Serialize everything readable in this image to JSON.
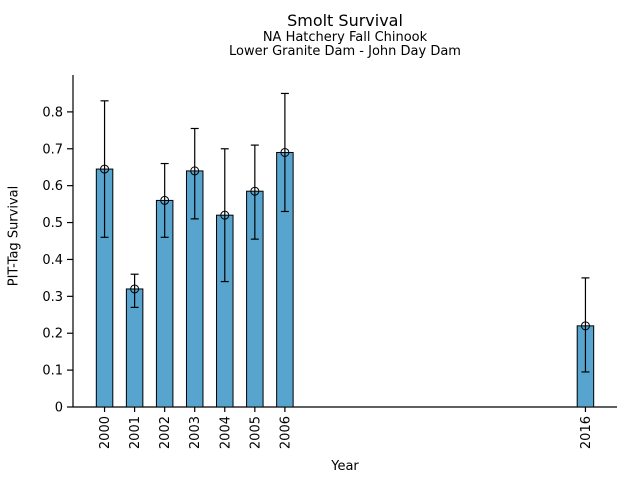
{
  "chart_data": {
    "type": "bar",
    "title": "Smolt Survival",
    "subtitles": [
      "NA Hatchery Fall Chinook",
      "Lower Granite Dam - John Day Dam"
    ],
    "xlabel": "Year",
    "ylabel": "PIT-Tag Survival",
    "categories": [
      "2000",
      "2001",
      "2002",
      "2003",
      "2004",
      "2005",
      "2006",
      "2016"
    ],
    "values": [
      0.645,
      0.32,
      0.56,
      0.64,
      0.52,
      0.585,
      0.69,
      0.22
    ],
    "error_low": [
      0.46,
      0.27,
      0.46,
      0.51,
      0.34,
      0.455,
      0.53,
      0.095
    ],
    "error_high": [
      0.83,
      0.36,
      0.66,
      0.755,
      0.7,
      0.71,
      0.85,
      0.35
    ],
    "yticks": [
      0,
      0.1,
      0.2,
      0.3,
      0.4,
      0.5,
      0.6,
      0.7,
      0.8
    ],
    "ytick_labels": [
      "0",
      "0.1",
      "0.2",
      "0.3",
      "0.4",
      "0.5",
      "0.6",
      "0.7",
      "0.8"
    ],
    "ylim": [
      0,
      0.9
    ],
    "xlim": [
      1998.95,
      2017.05
    ],
    "bar_color": "#57A5CF",
    "edge_color": "#000000",
    "error_color": "#000000",
    "marker": "open-circle",
    "grid": false,
    "legend": null,
    "spines": [
      "left",
      "bottom"
    ]
  }
}
